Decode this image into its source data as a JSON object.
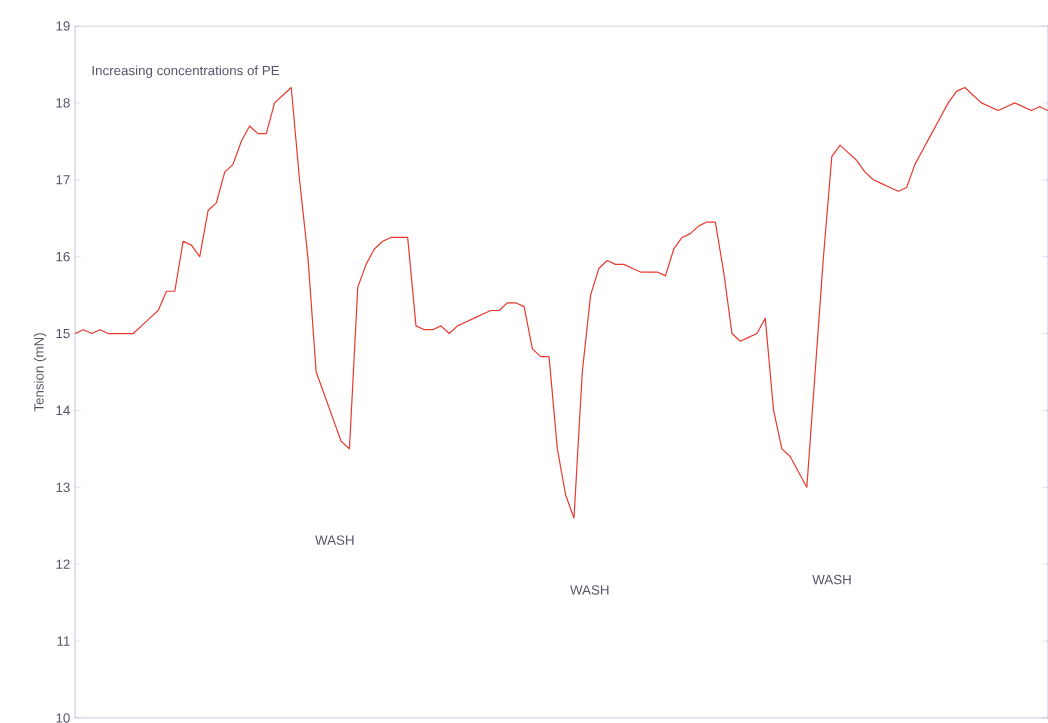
{
  "chart_data": {
    "type": "line",
    "ylabel": "Tension (mN)",
    "ylim": [
      10,
      19
    ],
    "yticks": [
      10,
      11,
      12,
      13,
      14,
      15,
      16,
      17,
      18,
      19
    ],
    "tick_labels": "y",
    "color": "#e8392e",
    "annotations": [
      "Increasing concentrations of PE",
      "WASH",
      "WASH",
      "WASH"
    ],
    "categories": [
      null,
      null,
      null,
      null,
      null,
      null,
      null,
      null,
      null,
      null,
      null,
      null,
      null,
      null,
      null,
      null,
      null,
      null,
      null,
      null,
      null,
      null,
      null,
      null,
      null,
      null,
      null,
      null,
      null,
      null,
      null,
      null,
      null,
      null,
      null,
      null,
      null,
      null,
      null,
      null,
      null,
      null,
      null,
      null,
      null,
      null,
      null,
      null,
      null,
      null,
      null,
      null,
      null,
      null,
      null,
      null,
      null,
      null,
      null,
      null,
      null,
      null,
      null,
      null,
      null,
      null,
      null,
      null,
      null,
      null,
      null,
      null,
      null,
      null,
      null,
      null,
      null,
      null,
      null,
      null,
      null,
      null,
      null,
      null,
      null,
      null,
      null,
      null,
      null,
      null,
      null,
      null,
      null,
      null,
      null,
      null,
      null,
      null,
      null,
      null,
      null,
      null,
      null,
      null,
      null,
      null,
      null,
      null,
      null,
      null,
      null,
      null,
      null,
      null,
      null,
      null,
      null,
      null
    ],
    "values": [
      15.0,
      15.05,
      15.0,
      15.05,
      15.0,
      15.0,
      15.0,
      15.0,
      15.1,
      15.2,
      15.3,
      15.55,
      15.55,
      16.2,
      16.15,
      16.0,
      16.6,
      16.7,
      17.1,
      17.2,
      17.5,
      17.7,
      17.6,
      17.6,
      18.0,
      18.1,
      18.2,
      17.0,
      16.0,
      14.5,
      14.2,
      13.9,
      13.6,
      13.5,
      15.6,
      15.9,
      16.1,
      16.2,
      16.25,
      16.25,
      16.25,
      15.1,
      15.05,
      15.05,
      15.1,
      15.0,
      15.1,
      15.15,
      15.2,
      15.25,
      15.3,
      15.3,
      15.4,
      15.4,
      15.35,
      14.8,
      14.7,
      14.7,
      13.5,
      12.9,
      12.6,
      14.5,
      15.5,
      15.85,
      15.95,
      15.9,
      15.9,
      15.85,
      15.8,
      15.8,
      15.8,
      15.75,
      16.1,
      16.25,
      16.3,
      16.4,
      16.45,
      16.45,
      15.8,
      15.0,
      14.9,
      14.95,
      15.0,
      15.2,
      14.0,
      13.5,
      13.4,
      13.2,
      13.0,
      14.5,
      16.0,
      17.3,
      17.45,
      17.35,
      17.25,
      17.1,
      17.0,
      16.95,
      16.9,
      16.85,
      16.9,
      17.2,
      17.4,
      17.6,
      17.8,
      18.0,
      18.15,
      18.2,
      18.1,
      18.0,
      17.95,
      17.9,
      17.95,
      18.0,
      17.95,
      17.9,
      17.95,
      17.9
    ]
  }
}
